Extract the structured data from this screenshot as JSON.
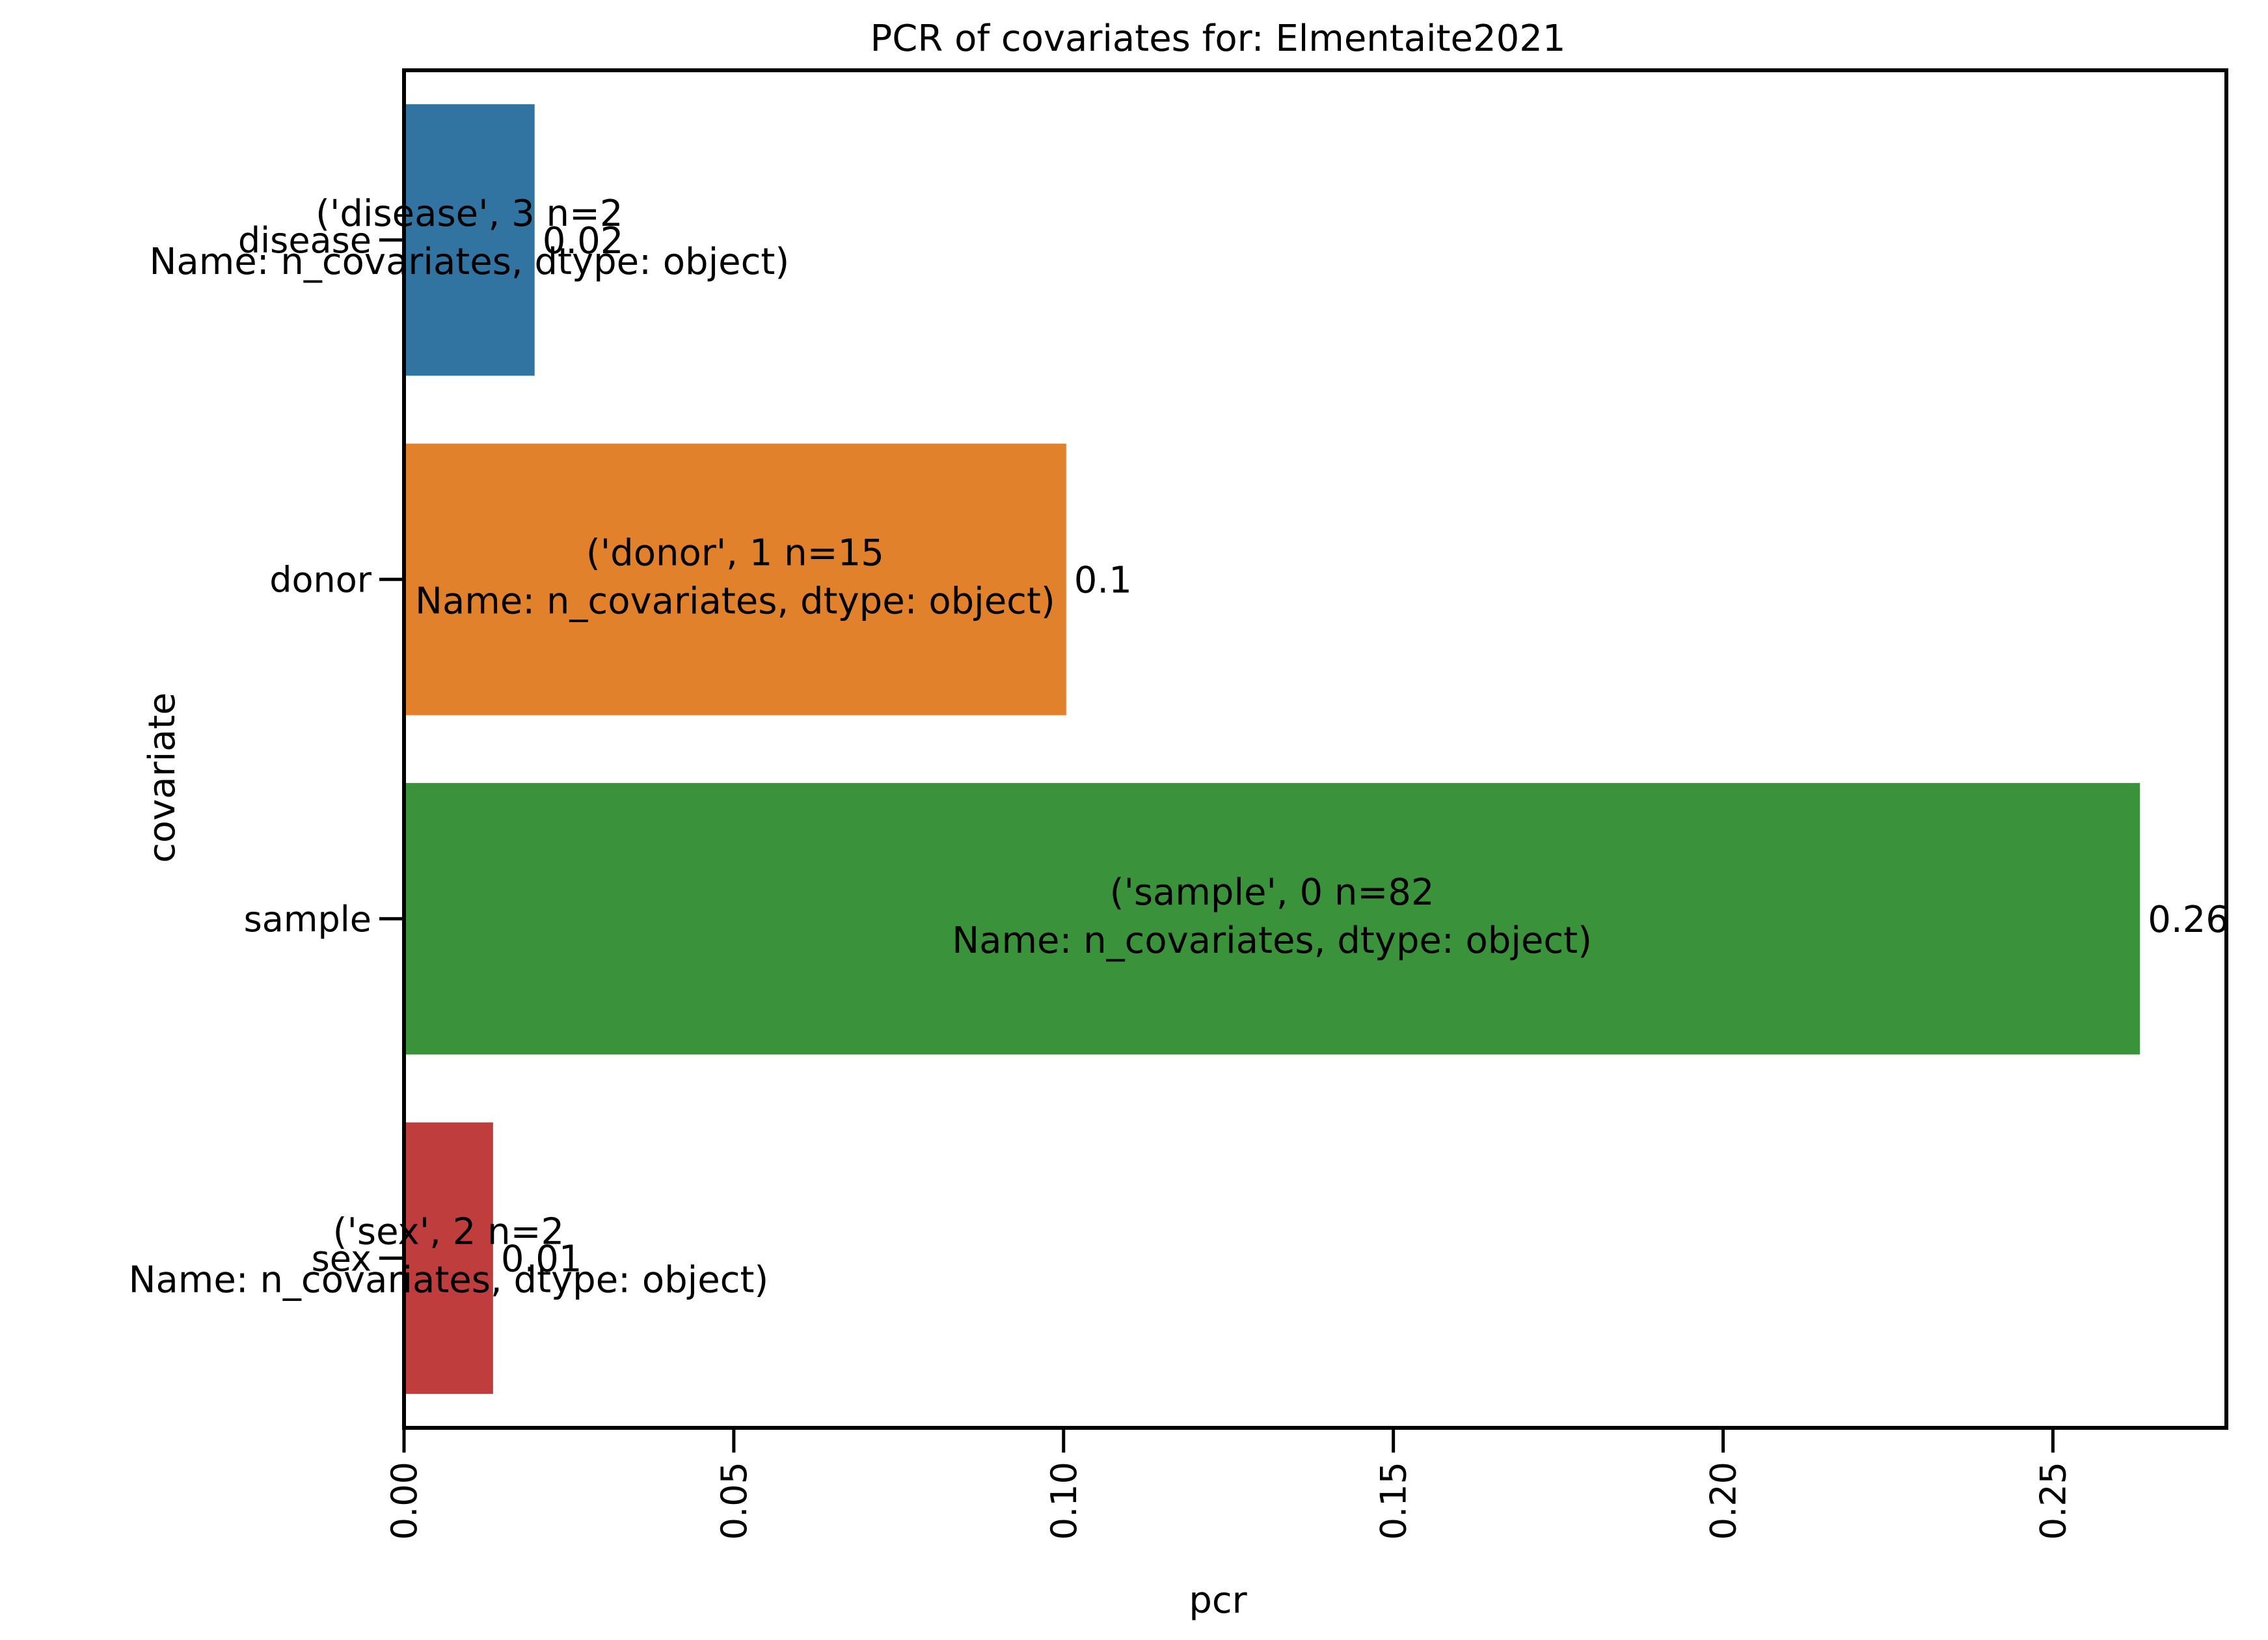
{
  "chart_data": {
    "type": "bar",
    "orientation": "horizontal",
    "title": "PCR of covariates for: Elmentaite2021",
    "xlabel": "pcr",
    "ylabel": "covariate",
    "xlim": [
      0,
      0.2763
    ],
    "x_ticks": [
      0.0,
      0.05,
      0.1,
      0.15,
      0.2,
      0.25
    ],
    "x_tick_labels": [
      "0.00",
      "0.05",
      "0.10",
      "0.15",
      "0.20",
      "0.25"
    ],
    "grid": false,
    "legend": "none",
    "categories": [
      "disease",
      "donor",
      "sample",
      "sex"
    ],
    "values": [
      0.0198,
      0.1004,
      0.2632,
      0.0135
    ],
    "value_labels": [
      "0.02",
      "0.1",
      "0.26",
      "0.01"
    ],
    "colors": [
      "#3274a1",
      "#e1812c",
      "#3a923a",
      "#c03d3e"
    ],
    "annotations": [
      {
        "line1": "('disease', 3    n=2",
        "line2": "Name: n_covariates, dtype: object)"
      },
      {
        "line1": "('donor', 1    n=15",
        "line2": "Name: n_covariates, dtype: object)"
      },
      {
        "line1": "('sample', 0    n=82",
        "line2": "Name: n_covariates, dtype: object)"
      },
      {
        "line1": "('sex', 2    n=2",
        "line2": "Name: n_covariates, dtype: object)"
      }
    ]
  }
}
